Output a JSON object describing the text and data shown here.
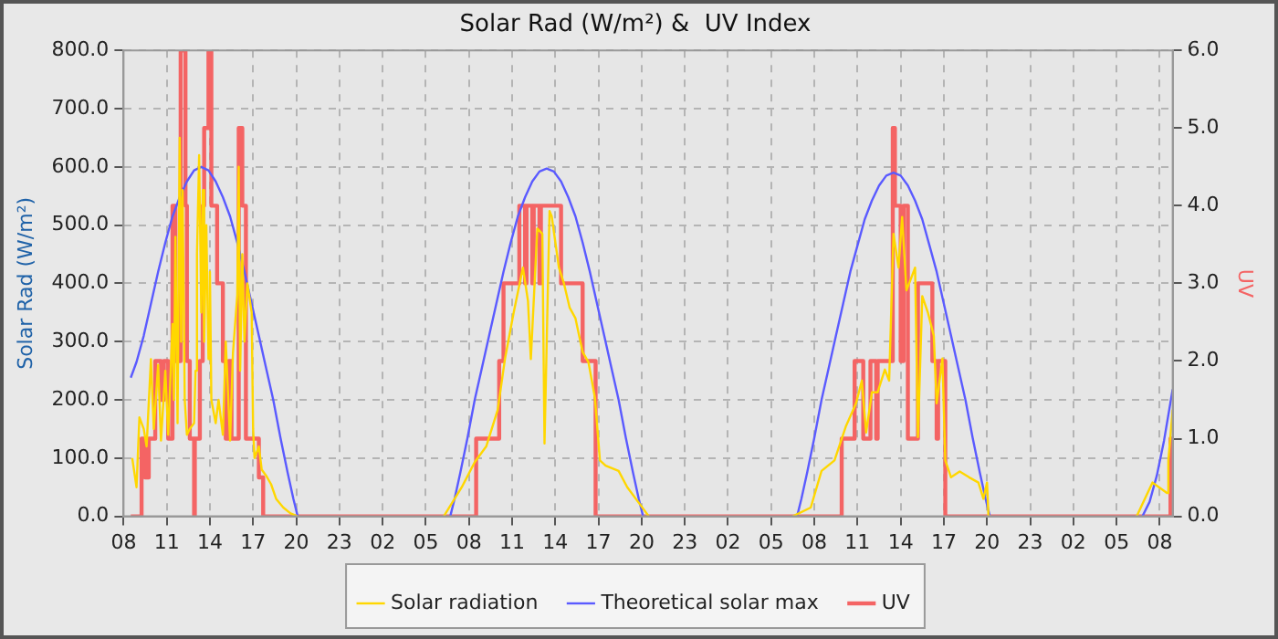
{
  "chart_data": {
    "type": "line",
    "title": "Solar Rad (W/m²) &  UV Index",
    "ylabel": "Solar Rad (W/m²)",
    "y2label": "UV",
    "xlim": [
      "--01-01T08:00",
      "--01-04T08:54"
    ],
    "xticks": [
      {
        "value": "--01-01T08:00",
        "label": "08"
      },
      {
        "value": "--01-01T11:00",
        "label": "11"
      },
      {
        "value": "--01-01T14:00",
        "label": "14"
      },
      {
        "value": "--01-01T17:00",
        "label": "17"
      },
      {
        "value": "--01-01T20:00",
        "label": "20"
      },
      {
        "value": "--01-01T23:00",
        "label": "23"
      },
      {
        "value": "--01-02T02:00",
        "label": "02"
      },
      {
        "value": "--01-02T05:00",
        "label": "05"
      },
      {
        "value": "--01-02T08:00",
        "label": "08"
      },
      {
        "value": "--01-02T11:00",
        "label": "11"
      },
      {
        "value": "--01-02T14:00",
        "label": "14"
      },
      {
        "value": "--01-02T17:00",
        "label": "17"
      },
      {
        "value": "--01-02T20:00",
        "label": "20"
      },
      {
        "value": "--01-02T23:00",
        "label": "23"
      },
      {
        "value": "--01-03T02:00",
        "label": "02"
      },
      {
        "value": "--01-03T05:00",
        "label": "05"
      },
      {
        "value": "--01-03T08:00",
        "label": "08"
      },
      {
        "value": "--01-03T11:00",
        "label": "11"
      },
      {
        "value": "--01-03T14:00",
        "label": "14"
      },
      {
        "value": "--01-03T17:00",
        "label": "17"
      },
      {
        "value": "--01-03T20:00",
        "label": "20"
      },
      {
        "value": "--01-03T23:00",
        "label": "23"
      },
      {
        "value": "--01-04T02:00",
        "label": "02"
      },
      {
        "value": "--01-04T05:00",
        "label": "05"
      },
      {
        "value": "--01-04T08:00",
        "label": "08"
      }
    ],
    "ylim": [
      0,
      800
    ],
    "yticks": [
      {
        "value": 0,
        "label": "0.0"
      },
      {
        "value": 100,
        "label": "100.0"
      },
      {
        "value": 200,
        "label": "200.0"
      },
      {
        "value": 300,
        "label": "300.0"
      },
      {
        "value": 400,
        "label": "400.0"
      },
      {
        "value": 500,
        "label": "500.0"
      },
      {
        "value": 600,
        "label": "600.0"
      },
      {
        "value": 700,
        "label": "700.0"
      },
      {
        "value": 800,
        "label": "800.0"
      }
    ],
    "y2lim": [
      0,
      6
    ],
    "y2ticks": [
      {
        "value": 0,
        "label": "0.0"
      },
      {
        "value": 1,
        "label": "1.0"
      },
      {
        "value": 2,
        "label": "2.0"
      },
      {
        "value": 3,
        "label": "3.0"
      },
      {
        "value": 4,
        "label": "4.0"
      },
      {
        "value": 5,
        "label": "5.0"
      },
      {
        "value": 6,
        "label": "6.0"
      }
    ],
    "grid": true,
    "legend": "bottom",
    "marker": "none",
    "line_style": "solid",
    "series": [
      {
        "name": "Solar radiation",
        "type": "line",
        "color": "#ffd700",
        "x": [
          "--01-01T08:36",
          "--01-01T08:54",
          "--01-01T09:06",
          "--01-01T09:24",
          "--01-01T09:36",
          "--01-01T09:54",
          "--01-01T10:06",
          "--01-01T10:24",
          "--01-01T10:36",
          "--01-01T10:54",
          "--01-01T11:06",
          "--01-01T11:24",
          "--01-01T11:30",
          "--01-01T11:36",
          "--01-01T11:45",
          "--01-01T11:54",
          "--01-01T12:00",
          "--01-01T12:06",
          "--01-01T12:15",
          "--01-01T12:24",
          "--01-01T12:36",
          "--01-01T12:54",
          "--01-01T13:00",
          "--01-01T13:06",
          "--01-01T13:15",
          "--01-01T13:24",
          "--01-01T13:30",
          "--01-01T13:36",
          "--01-01T13:45",
          "--01-01T13:54",
          "--01-01T14:00",
          "--01-01T14:06",
          "--01-01T14:24",
          "--01-01T14:36",
          "--01-01T14:54",
          "--01-01T15:06",
          "--01-01T15:24",
          "--01-01T15:36",
          "--01-01T15:54",
          "--01-01T16:00",
          "--01-01T16:06",
          "--01-01T16:15",
          "--01-01T16:24",
          "--01-01T16:36",
          "--01-01T16:54",
          "--01-01T17:00",
          "--01-01T17:06",
          "--01-01T17:24",
          "--01-01T17:36",
          "--01-01T17:54",
          "--01-01T18:15",
          "--01-01T18:36",
          "--01-01T19:06",
          "--01-01T19:36",
          "--01-01T20:06",
          "--01-02T01:00",
          "--01-02T06:15",
          "--01-02T07:30",
          "--01-02T08:24",
          "--01-02T09:12",
          "--01-02T10:00",
          "--01-02T10:30",
          "--01-02T11:06",
          "--01-02T11:45",
          "--01-02T12:06",
          "--01-02T12:18",
          "--01-02T12:45",
          "--01-02T13:06",
          "--01-02T13:15",
          "--01-02T13:36",
          "--01-02T13:45",
          "--01-02T14:15",
          "--01-02T14:36",
          "--01-02T15:00",
          "--01-02T15:24",
          "--01-02T15:54",
          "--01-02T16:18",
          "--01-02T16:45",
          "--01-02T17:06",
          "--01-02T17:30",
          "--01-02T18:24",
          "--01-02T19:00",
          "--01-02T19:54",
          "--01-02T20:30",
          "--01-03T02:00",
          "--01-03T06:30",
          "--01-03T07:45",
          "--01-03T08:30",
          "--01-03T09:24",
          "--01-03T10:12",
          "--01-03T10:54",
          "--01-03T11:18",
          "--01-03T11:36",
          "--01-03T12:00",
          "--01-03T12:24",
          "--01-03T12:54",
          "--01-03T13:12",
          "--01-03T13:30",
          "--01-03T13:51",
          "--01-03T14:06",
          "--01-03T14:24",
          "--01-03T14:42",
          "--01-03T15:00",
          "--01-03T15:12",
          "--01-03T15:30",
          "--01-03T15:54",
          "--01-03T16:18",
          "--01-03T16:30",
          "--01-03T16:54",
          "--01-03T17:06",
          "--01-03T17:30",
          "--01-03T18:06",
          "--01-03T18:45",
          "--01-03T19:24",
          "--01-03T19:45",
          "--01-03T20:00",
          "--01-03T20:06",
          "--01-03T20:15",
          "--01-04T02:00",
          "--01-04T06:24",
          "--01-04T07:30",
          "--01-04T08:30",
          "--01-04T08:36",
          "--01-04T08:54"
        ],
        "values": [
          100,
          50,
          170,
          150,
          120,
          270,
          150,
          260,
          130,
          250,
          140,
          330,
          200,
          480,
          160,
          650,
          300,
          560,
          200,
          140,
          150,
          160,
          250,
          450,
          620,
          350,
          560,
          300,
          500,
          270,
          420,
          200,
          160,
          200,
          140,
          300,
          130,
          280,
          380,
          600,
          250,
          450,
          300,
          400,
          350,
          150,
          100,
          120,
          80,
          70,
          55,
          30,
          15,
          5,
          0,
          null,
          0,
          50,
          93,
          120,
          183,
          270,
          349,
          427,
          370,
          270,
          494,
          485,
          125,
          524,
          515,
          427,
          400,
          358,
          340,
          282,
          265,
          204,
          96,
          87,
          78,
          50,
          20,
          0,
          null,
          0,
          15,
          78,
          96,
          155,
          194,
          233,
          144,
          213,
          213,
          252,
          233,
          485,
          427,
          514,
          388,
          407,
          427,
          136,
          378,
          349,
          310,
          194,
          271,
          96,
          67,
          77,
          67,
          58,
          30,
          58,
          0,
          0,
          null,
          0,
          58,
          40,
          96,
          183
        ]
      },
      {
        "name": "Theoretical solar max",
        "type": "line",
        "color": "#5a5aff",
        "x": [
          "--01-01T08:30",
          "--01-01T08:54",
          "--01-01T09:24",
          "--01-01T09:54",
          "--01-01T10:24",
          "--01-01T10:54",
          "--01-01T11:24",
          "--01-01T11:54",
          "--01-01T12:24",
          "--01-01T12:54",
          "--01-01T13:24",
          "--01-01T13:54",
          "--01-01T14:24",
          "--01-01T14:54",
          "--01-01T15:24",
          "--01-01T15:54",
          "--01-01T16:24",
          "--01-01T16:54",
          "--01-01T17:24",
          "--01-01T17:54",
          "--01-01T18:24",
          "--01-01T18:54",
          "--01-01T19:24",
          "--01-01T19:48",
          "--01-01T20:06",
          "--01-02T01:00",
          "--01-02T06:42",
          "--01-02T07:00",
          "--01-02T07:24",
          "--01-02T07:54",
          "--01-02T08:24",
          "--01-02T08:54",
          "--01-02T09:24",
          "--01-02T09:54",
          "--01-02T10:24",
          "--01-02T10:54",
          "--01-02T11:24",
          "--01-02T11:54",
          "--01-02T12:24",
          "--01-02T12:54",
          "--01-02T13:24",
          "--01-02T13:54",
          "--01-02T14:24",
          "--01-02T14:54",
          "--01-02T15:24",
          "--01-02T15:54",
          "--01-02T16:24",
          "--01-02T16:54",
          "--01-02T17:24",
          "--01-02T17:54",
          "--01-02T18:24",
          "--01-02T18:54",
          "--01-02T19:24",
          "--01-02T19:48",
          "--01-02T20:06",
          "--01-03T02:00",
          "--01-03T06:48",
          "--01-03T07:06",
          "--01-03T07:30",
          "--01-03T08:00",
          "--01-03T08:30",
          "--01-03T09:00",
          "--01-03T09:30",
          "--01-03T10:00",
          "--01-03T10:30",
          "--01-03T11:00",
          "--01-03T11:30",
          "--01-03T12:00",
          "--01-03T12:30",
          "--01-03T13:00",
          "--01-03T13:30",
          "--01-03T14:00",
          "--01-03T14:30",
          "--01-03T15:00",
          "--01-03T15:30",
          "--01-03T16:00",
          "--01-03T16:30",
          "--01-03T17:00",
          "--01-03T17:30",
          "--01-03T18:00",
          "--01-03T18:30",
          "--01-03T19:00",
          "--01-03T19:30",
          "--01-03T19:54",
          "--01-03T20:12",
          "--01-04T02:00",
          "--01-04T06:48",
          "--01-04T07:18",
          "--01-04T07:48",
          "--01-04T08:18",
          "--01-04T08:54"
        ],
        "values": [
          238,
          265,
          310,
          365,
          420,
          470,
          515,
          548,
          575,
          594,
          600,
          594,
          575,
          548,
          515,
          470,
          420,
          365,
          310,
          255,
          200,
          135,
          75,
          30,
          0,
          null,
          0,
          30,
          75,
          135,
          200,
          255,
          310,
          365,
          420,
          470,
          515,
          548,
          575,
          592,
          597,
          592,
          575,
          548,
          515,
          470,
          420,
          365,
          310,
          255,
          200,
          135,
          75,
          30,
          0,
          null,
          0,
          30,
          75,
          135,
          200,
          255,
          310,
          365,
          420,
          465,
          510,
          542,
          568,
          585,
          590,
          585,
          568,
          542,
          510,
          465,
          420,
          365,
          310,
          255,
          200,
          135,
          75,
          30,
          0,
          null,
          0,
          25,
          70,
          130,
          218
        ]
      },
      {
        "name": "UV",
        "type": "step",
        "axis": "y2",
        "color": "#f46464",
        "x": [
          "--01-01T08:30",
          "--01-01T09:15",
          "--01-01T09:30",
          "--01-01T09:45",
          "--01-01T10:12",
          "--01-01T10:36",
          "--01-01T10:48",
          "--01-01T11:06",
          "--01-01T11:24",
          "--01-01T11:36",
          "--01-01T11:58",
          "--01-01T12:18",
          "--01-01T12:24",
          "--01-01T12:36",
          "--01-01T12:54",
          "--01-01T12:57",
          "--01-01T13:18",
          "--01-01T13:30",
          "--01-01T13:36",
          "--01-01T13:54",
          "--01-01T14:06",
          "--01-01T14:30",
          "--01-01T14:54",
          "--01-01T15:06",
          "--01-01T15:18",
          "--01-01T15:30",
          "--01-01T16:00",
          "--01-01T16:15",
          "--01-01T16:30",
          "--01-01T17:24",
          "--01-01T17:42",
          "--01-02T08:30",
          "--01-02T10:06",
          "--01-02T10:24",
          "--01-02T11:30",
          "--01-02T11:54",
          "--01-02T12:00",
          "--01-02T12:24",
          "--01-02T12:30",
          "--01-02T12:54",
          "--01-02T13:00",
          "--01-02T14:24",
          "--01-02T15:54",
          "--01-02T16:48",
          "--01-03T09:54",
          "--01-03T10:48",
          "--01-03T11:24",
          "--01-03T11:54",
          "--01-03T12:18",
          "--01-03T12:24",
          "--01-03T13:27",
          "--01-03T13:36",
          "--01-03T14:00",
          "--01-03T14:12",
          "--01-03T14:30",
          "--01-03T15:12",
          "--01-03T16:12",
          "--01-03T16:30",
          "--01-03T16:36",
          "--01-03T17:06",
          "--01-04T08:45",
          "--01-04T08:54"
        ],
        "values": [
          0,
          1,
          0.5,
          1,
          2,
          1.5,
          2,
          1,
          4,
          2,
          6,
          4,
          2,
          1,
          0,
          1,
          2,
          4,
          5,
          6,
          4,
          3,
          2,
          1,
          2,
          1,
          5,
          4,
          1,
          0.5,
          0,
          1,
          2,
          3,
          4,
          3,
          4,
          3,
          4,
          3,
          4,
          3,
          2,
          0,
          1,
          2,
          1,
          2,
          1,
          2,
          5,
          4,
          2,
          4,
          1,
          3,
          2,
          1,
          2,
          0,
          1,
          1
        ]
      }
    ]
  }
}
